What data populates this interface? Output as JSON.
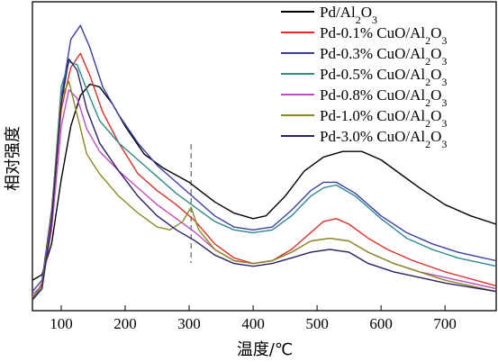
{
  "chart_data": {
    "type": "line",
    "xlabel": "温度/℃",
    "ylabel": "相对强度",
    "xlim": [
      55,
      780
    ],
    "ylim": [
      0,
      1
    ],
    "xticks": [
      100,
      200,
      300,
      400,
      500,
      600,
      700
    ],
    "y_ticks_labeled": false,
    "grid": false,
    "legend_position": "top-right",
    "reference_line": {
      "x": 303,
      "style": "dashed"
    },
    "series": [
      {
        "name": "Pd/Al2O3",
        "label_parts": [
          [
            "Pd/Al",
            ""
          ],
          [
            "2",
            "sub"
          ],
          [
            "O",
            ""
          ],
          [
            "3",
            "sub"
          ]
        ],
        "color": "#000000",
        "points": [
          [
            55,
            0.07
          ],
          [
            70,
            0.09
          ],
          [
            85,
            0.2
          ],
          [
            100,
            0.43
          ],
          [
            115,
            0.62
          ],
          [
            130,
            0.73
          ],
          [
            145,
            0.77
          ],
          [
            160,
            0.76
          ],
          [
            180,
            0.7
          ],
          [
            200,
            0.62
          ],
          [
            230,
            0.52
          ],
          [
            260,
            0.47
          ],
          [
            300,
            0.42
          ],
          [
            340,
            0.35
          ],
          [
            370,
            0.31
          ],
          [
            400,
            0.29
          ],
          [
            420,
            0.3
          ],
          [
            450,
            0.37
          ],
          [
            480,
            0.46
          ],
          [
            510,
            0.51
          ],
          [
            540,
            0.53
          ],
          [
            570,
            0.53
          ],
          [
            600,
            0.5
          ],
          [
            630,
            0.45
          ],
          [
            660,
            0.4
          ],
          [
            700,
            0.34
          ],
          [
            740,
            0.3
          ],
          [
            780,
            0.27
          ]
        ]
      },
      {
        "name": "Pd-0.1% CuO/Al2O3",
        "label_parts": [
          [
            "Pd-0.1% CuO/Al",
            ""
          ],
          [
            "2",
            "sub"
          ],
          [
            "O",
            ""
          ],
          [
            "3",
            "sub"
          ]
        ],
        "color": "#e0302a",
        "points": [
          [
            55,
            0.0
          ],
          [
            70,
            0.06
          ],
          [
            85,
            0.3
          ],
          [
            100,
            0.68
          ],
          [
            115,
            0.83
          ],
          [
            130,
            0.88
          ],
          [
            145,
            0.8
          ],
          [
            165,
            0.67
          ],
          [
            190,
            0.56
          ],
          [
            220,
            0.45
          ],
          [
            250,
            0.39
          ],
          [
            280,
            0.34
          ],
          [
            310,
            0.28
          ],
          [
            340,
            0.2
          ],
          [
            370,
            0.15
          ],
          [
            400,
            0.13
          ],
          [
            430,
            0.14
          ],
          [
            460,
            0.18
          ],
          [
            490,
            0.24
          ],
          [
            510,
            0.28
          ],
          [
            530,
            0.29
          ],
          [
            550,
            0.27
          ],
          [
            580,
            0.22
          ],
          [
            610,
            0.18
          ],
          [
            650,
            0.14
          ],
          [
            700,
            0.1
          ],
          [
            780,
            0.05
          ]
        ]
      },
      {
        "name": "Pd-0.3% CuO/Al2O3",
        "label_parts": [
          [
            "Pd-0.3% CuO/Al",
            ""
          ],
          [
            "2",
            "sub"
          ],
          [
            "O",
            ""
          ],
          [
            "3",
            "sub"
          ]
        ],
        "color": "#3b3fa6",
        "points": [
          [
            55,
            0.03
          ],
          [
            70,
            0.07
          ],
          [
            85,
            0.32
          ],
          [
            100,
            0.72
          ],
          [
            115,
            0.93
          ],
          [
            130,
            0.98
          ],
          [
            145,
            0.9
          ],
          [
            165,
            0.76
          ],
          [
            190,
            0.66
          ],
          [
            220,
            0.56
          ],
          [
            250,
            0.48
          ],
          [
            280,
            0.42
          ],
          [
            310,
            0.36
          ],
          [
            340,
            0.3
          ],
          [
            370,
            0.26
          ],
          [
            400,
            0.25
          ],
          [
            430,
            0.26
          ],
          [
            460,
            0.32
          ],
          [
            490,
            0.39
          ],
          [
            510,
            0.42
          ],
          [
            530,
            0.42
          ],
          [
            560,
            0.38
          ],
          [
            600,
            0.3
          ],
          [
            640,
            0.24
          ],
          [
            680,
            0.2
          ],
          [
            720,
            0.17
          ],
          [
            760,
            0.15
          ],
          [
            780,
            0.14
          ]
        ]
      },
      {
        "name": "Pd-0.5% CuO/Al2O3",
        "label_parts": [
          [
            "Pd-0.5% CuO/Al",
            ""
          ],
          [
            "2",
            "sub"
          ],
          [
            "O",
            ""
          ],
          [
            "3",
            "sub"
          ]
        ],
        "color": "#2f8a8a",
        "points": [
          [
            55,
            0.0
          ],
          [
            70,
            0.05
          ],
          [
            85,
            0.3
          ],
          [
            100,
            0.76
          ],
          [
            112,
            0.85
          ],
          [
            125,
            0.84
          ],
          [
            140,
            0.75
          ],
          [
            160,
            0.64
          ],
          [
            190,
            0.56
          ],
          [
            220,
            0.5
          ],
          [
            250,
            0.44
          ],
          [
            280,
            0.38
          ],
          [
            310,
            0.33
          ],
          [
            340,
            0.28
          ],
          [
            370,
            0.25
          ],
          [
            400,
            0.24
          ],
          [
            430,
            0.25
          ],
          [
            460,
            0.3
          ],
          [
            490,
            0.37
          ],
          [
            510,
            0.4
          ],
          [
            530,
            0.41
          ],
          [
            560,
            0.37
          ],
          [
            600,
            0.29
          ],
          [
            640,
            0.22
          ],
          [
            680,
            0.18
          ],
          [
            720,
            0.15
          ],
          [
            760,
            0.13
          ],
          [
            780,
            0.12
          ]
        ]
      },
      {
        "name": "Pd-0.8% CuO/Al2O3",
        "label_parts": [
          [
            "Pd-0.8% CuO/Al",
            ""
          ],
          [
            "2",
            "sub"
          ],
          [
            "O",
            ""
          ],
          [
            "3",
            "sub"
          ]
        ],
        "color": "#c04cc0",
        "points": [
          [
            55,
            0.02
          ],
          [
            70,
            0.05
          ],
          [
            85,
            0.25
          ],
          [
            100,
            0.62
          ],
          [
            112,
            0.75
          ],
          [
            125,
            0.72
          ],
          [
            140,
            0.61
          ],
          [
            160,
            0.53
          ],
          [
            190,
            0.46
          ],
          [
            220,
            0.4
          ],
          [
            250,
            0.34
          ],
          [
            280,
            0.29
          ],
          [
            310,
            0.24
          ],
          [
            340,
            0.18
          ],
          [
            370,
            0.14
          ],
          [
            400,
            0.13
          ],
          [
            430,
            0.14
          ],
          [
            460,
            0.17
          ],
          [
            490,
            0.21
          ],
          [
            520,
            0.22
          ],
          [
            550,
            0.21
          ],
          [
            580,
            0.17
          ],
          [
            620,
            0.13
          ],
          [
            660,
            0.1
          ],
          [
            700,
            0.08
          ],
          [
            780,
            0.04
          ]
        ]
      },
      {
        "name": "Pd-1.0% CuO/Al2O3",
        "label_parts": [
          [
            "Pd-1.0% CuO/Al",
            ""
          ],
          [
            "2",
            "sub"
          ],
          [
            "O",
            ""
          ],
          [
            "3",
            "sub"
          ]
        ],
        "color": "#8a8a22",
        "points": [
          [
            55,
            0.01
          ],
          [
            70,
            0.05
          ],
          [
            85,
            0.3
          ],
          [
            100,
            0.72
          ],
          [
            112,
            0.78
          ],
          [
            125,
            0.66
          ],
          [
            140,
            0.52
          ],
          [
            160,
            0.45
          ],
          [
            190,
            0.37
          ],
          [
            220,
            0.31
          ],
          [
            250,
            0.26
          ],
          [
            270,
            0.25
          ],
          [
            290,
            0.28
          ],
          [
            303,
            0.33
          ],
          [
            315,
            0.25
          ],
          [
            340,
            0.18
          ],
          [
            370,
            0.14
          ],
          [
            400,
            0.13
          ],
          [
            430,
            0.14
          ],
          [
            460,
            0.17
          ],
          [
            490,
            0.21
          ],
          [
            520,
            0.22
          ],
          [
            550,
            0.21
          ],
          [
            580,
            0.17
          ],
          [
            620,
            0.13
          ],
          [
            660,
            0.1
          ],
          [
            700,
            0.07
          ],
          [
            780,
            0.03
          ]
        ]
      },
      {
        "name": "Pd-3.0% CuO/Al2O3",
        "label_parts": [
          [
            "Pd-3.0% CuO/Al",
            ""
          ],
          [
            "2",
            "sub"
          ],
          [
            "O",
            ""
          ],
          [
            "3",
            "sub"
          ]
        ],
        "color": "#2e1f66",
        "points": [
          [
            55,
            0.0
          ],
          [
            70,
            0.04
          ],
          [
            85,
            0.28
          ],
          [
            100,
            0.7
          ],
          [
            112,
            0.86
          ],
          [
            125,
            0.82
          ],
          [
            140,
            0.68
          ],
          [
            160,
            0.56
          ],
          [
            190,
            0.46
          ],
          [
            220,
            0.37
          ],
          [
            250,
            0.3
          ],
          [
            280,
            0.25
          ],
          [
            310,
            0.21
          ],
          [
            340,
            0.16
          ],
          [
            370,
            0.13
          ],
          [
            400,
            0.12
          ],
          [
            430,
            0.13
          ],
          [
            460,
            0.15
          ],
          [
            490,
            0.17
          ],
          [
            520,
            0.18
          ],
          [
            550,
            0.17
          ],
          [
            580,
            0.13
          ],
          [
            620,
            0.1
          ],
          [
            660,
            0.08
          ],
          [
            700,
            0.06
          ],
          [
            780,
            0.03
          ]
        ]
      }
    ]
  }
}
